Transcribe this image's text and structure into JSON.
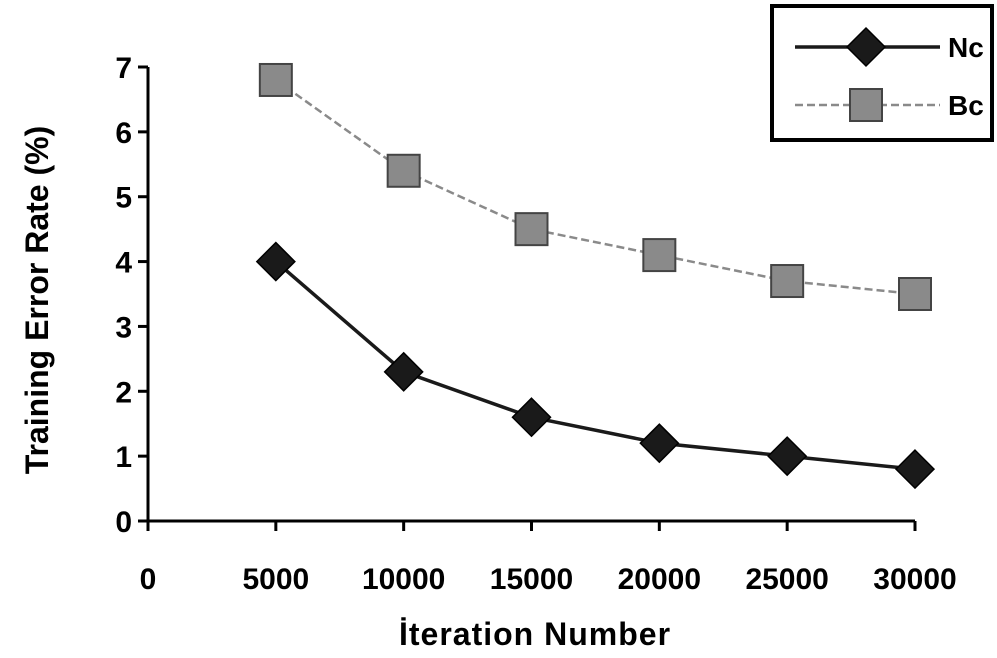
{
  "chart_data": {
    "type": "line",
    "title": "",
    "xlabel": "İteration Number",
    "ylabel": "Training Error Rate (%)",
    "x": [
      5000,
      10000,
      15000,
      20000,
      25000,
      30000
    ],
    "x_ticks": [
      "0",
      "5000",
      "10000",
      "15000",
      "20000",
      "25000",
      "30000"
    ],
    "y_ticks": [
      "0",
      "1",
      "2",
      "3",
      "4",
      "5",
      "6",
      "7"
    ],
    "xlim": [
      0,
      30000
    ],
    "ylim": [
      0,
      7
    ],
    "grid": false,
    "legend_position": "top-right",
    "series": [
      {
        "name": "Nc",
        "values": [
          4.0,
          2.3,
          1.6,
          1.2,
          1.0,
          0.8
        ],
        "marker": "diamond",
        "color": "#1a1a1a",
        "line_style": "solid"
      },
      {
        "name": "Bc",
        "values": [
          6.8,
          5.4,
          4.5,
          4.1,
          3.7,
          3.5
        ],
        "marker": "square",
        "color": "#8a8a8a",
        "line_style": "dashed"
      }
    ]
  }
}
